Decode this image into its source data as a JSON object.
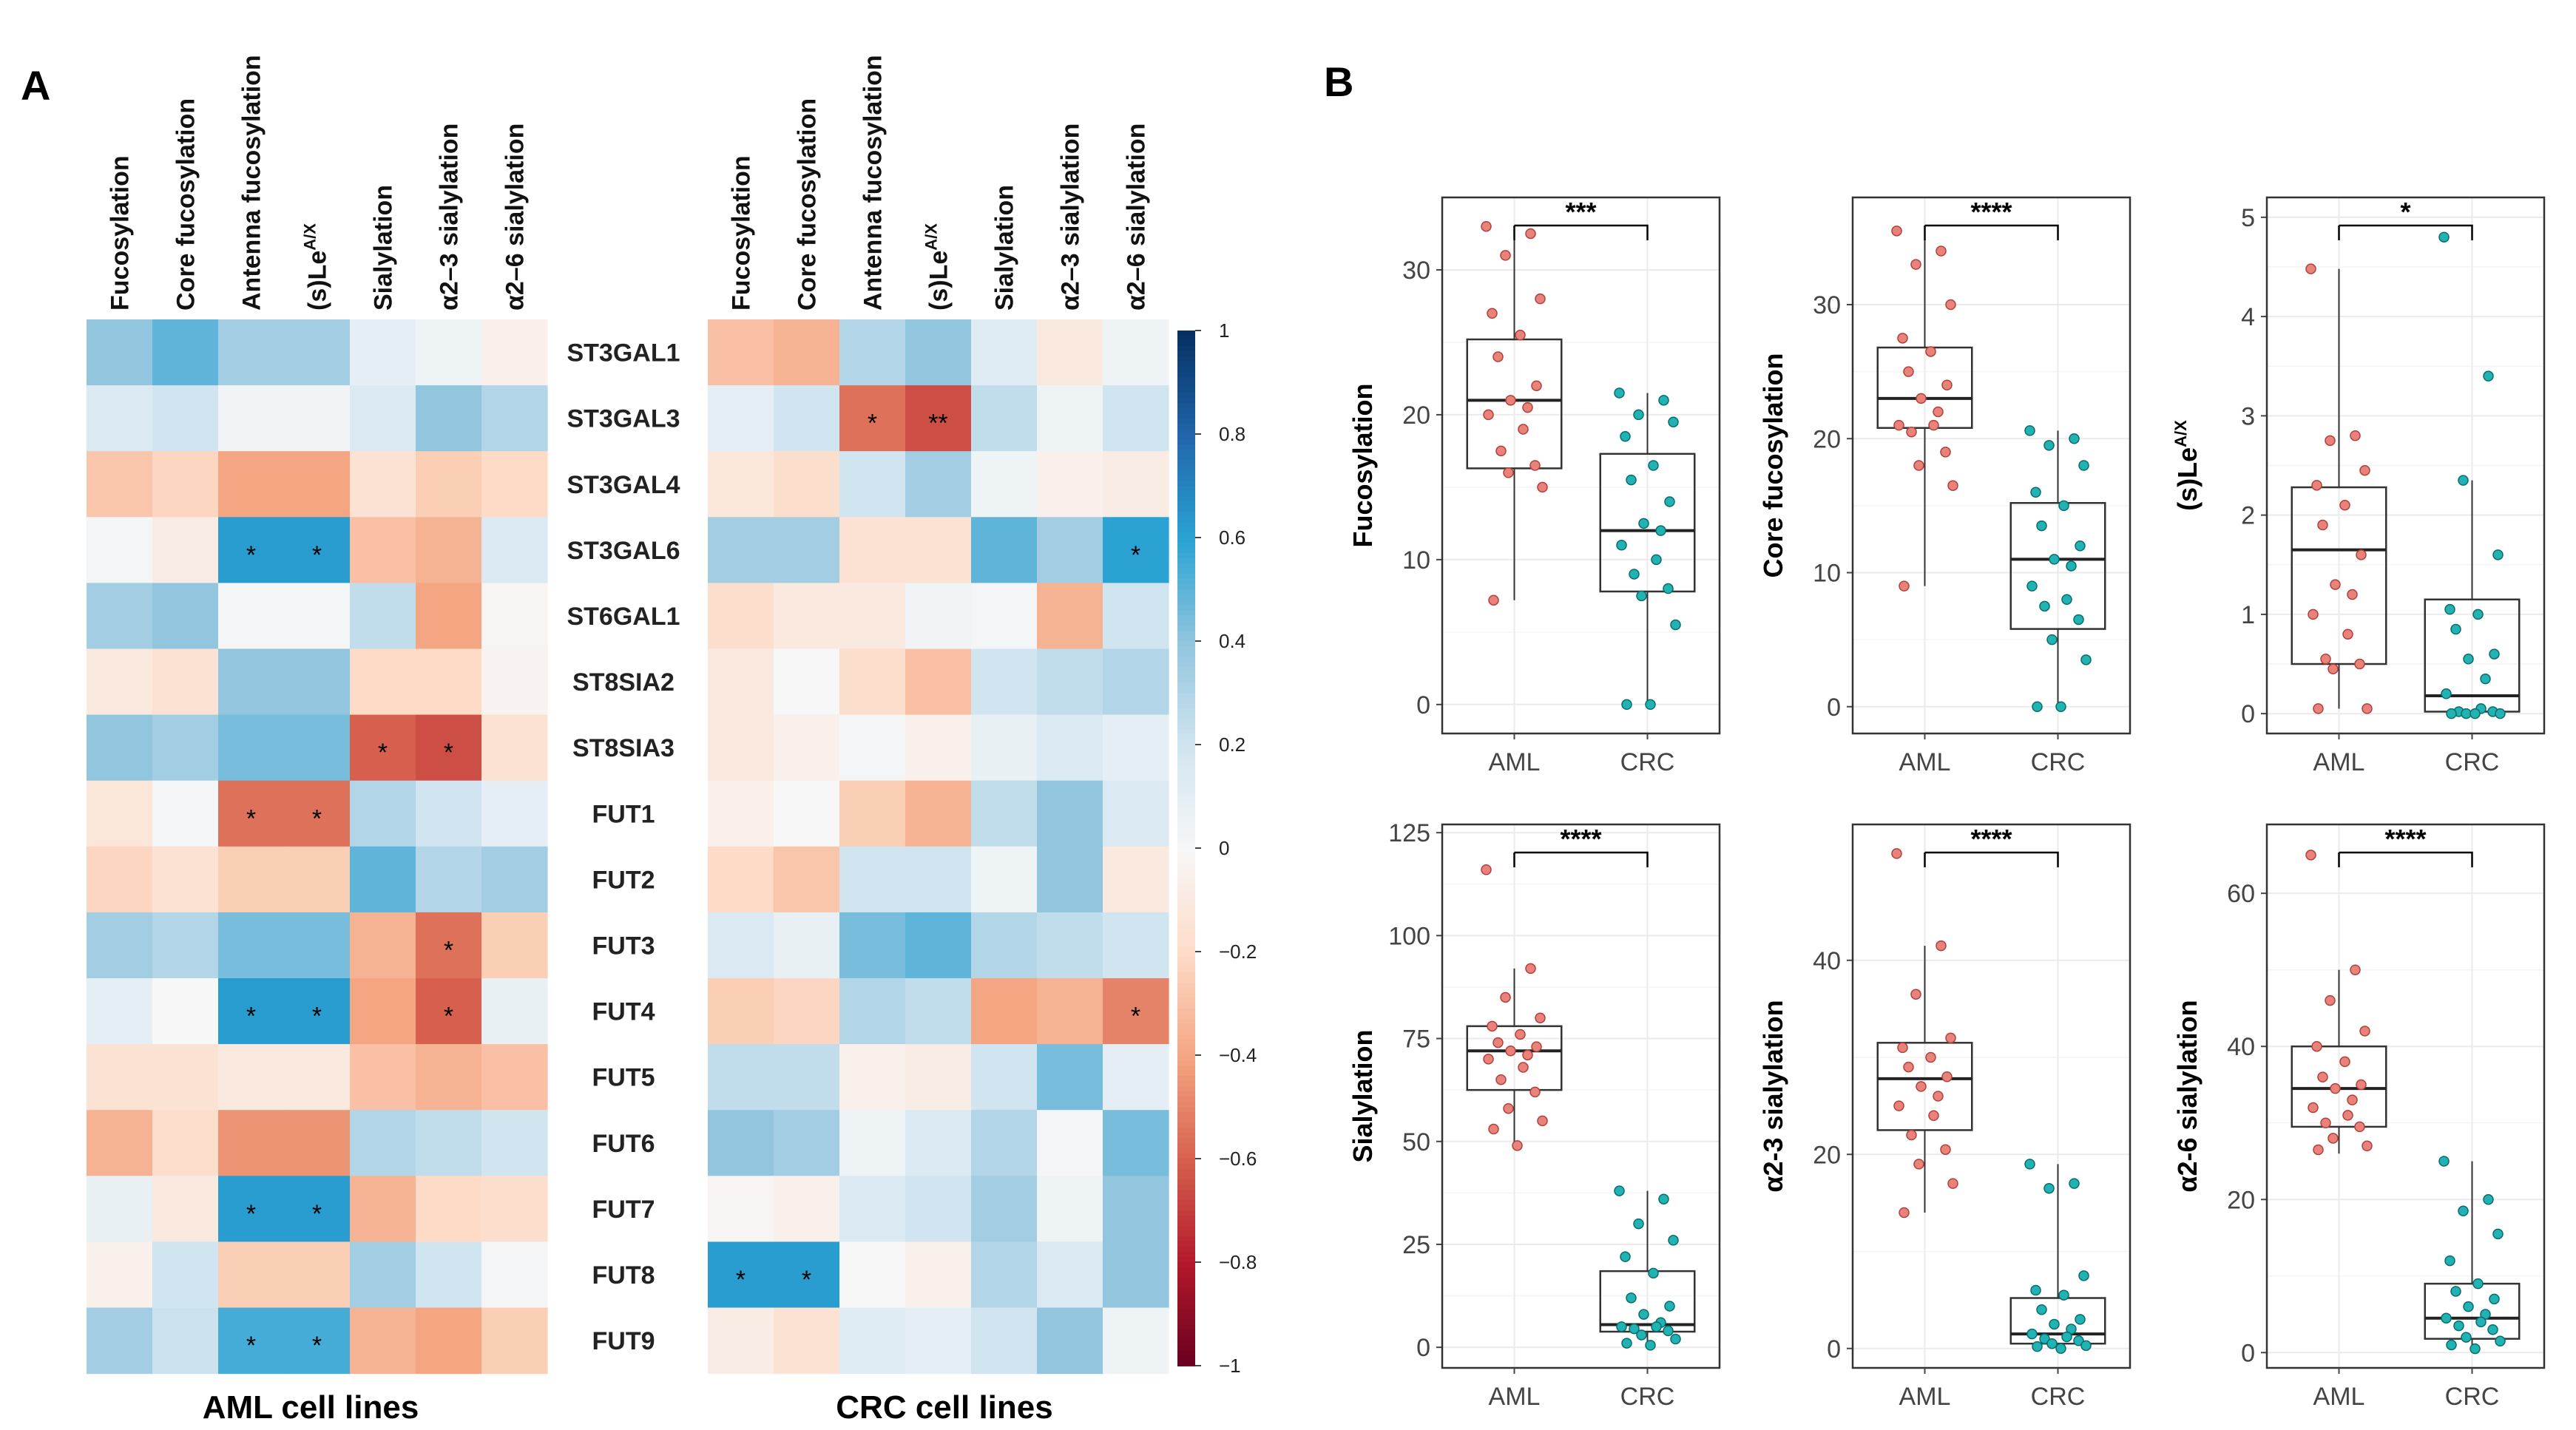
{
  "panel_labels": [
    "A",
    "B"
  ],
  "heatmap": {
    "columns": [
      "Fucosylation",
      "Core fucosylation",
      "Antenna fucosylation",
      "(s)Le^A/X",
      "Sialylation",
      "α2–3 sialylation",
      "α2–6 sialylation"
    ],
    "rows": [
      "ST3GAL1",
      "ST3GAL3",
      "ST3GAL4",
      "ST3GAL6",
      "ST6GAL1",
      "ST8SIA2",
      "ST8SIA3",
      "FUT1",
      "FUT2",
      "FUT3",
      "FUT4",
      "FUT5",
      "FUT6",
      "FUT7",
      "FUT8",
      "FUT9"
    ],
    "colorbar": {
      "ticks": [
        "1",
        "0.8",
        "0.6",
        "0.4",
        "0.2",
        "0",
        "−0.2",
        "−0.4",
        "−0.6",
        "−0.8",
        "−1"
      ],
      "high": "#08306b",
      "mid": "#ffffff",
      "low": "#67001f"
    },
    "panels": [
      {
        "title": "AML cell lines",
        "values": [
          [
            0.4,
            0.5,
            0.35,
            0.35,
            0.1,
            0.05,
            -0.05
          ],
          [
            0.15,
            0.2,
            0.03,
            0.03,
            0.15,
            0.4,
            0.3
          ],
          [
            -0.28,
            -0.22,
            -0.4,
            -0.4,
            -0.15,
            -0.25,
            -0.2
          ],
          [
            0.02,
            -0.08,
            0.62,
            0.62,
            -0.3,
            -0.35,
            0.15
          ],
          [
            0.35,
            0.4,
            0.02,
            0.02,
            0.25,
            -0.4,
            -0.02
          ],
          [
            -0.1,
            -0.15,
            0.4,
            0.4,
            -0.2,
            -0.2,
            -0.03
          ],
          [
            0.4,
            0.35,
            0.45,
            0.45,
            -0.6,
            -0.65,
            -0.15
          ],
          [
            -0.12,
            0.02,
            -0.55,
            -0.55,
            0.3,
            0.2,
            0.1
          ],
          [
            -0.22,
            -0.15,
            -0.25,
            -0.25,
            0.5,
            0.3,
            0.35
          ],
          [
            0.35,
            0.3,
            0.45,
            0.45,
            -0.35,
            -0.55,
            -0.25
          ],
          [
            0.1,
            0.0,
            0.62,
            0.62,
            -0.4,
            -0.6,
            0.08
          ],
          [
            -0.15,
            -0.15,
            -0.1,
            -0.1,
            -0.3,
            -0.35,
            -0.3
          ],
          [
            -0.35,
            -0.18,
            -0.45,
            -0.45,
            0.3,
            0.25,
            0.2
          ],
          [
            0.08,
            -0.1,
            0.62,
            0.62,
            -0.35,
            -0.2,
            -0.18
          ],
          [
            -0.05,
            0.2,
            -0.25,
            -0.25,
            0.35,
            0.2,
            0.02
          ],
          [
            0.35,
            0.22,
            0.55,
            0.55,
            -0.35,
            -0.4,
            -0.25
          ]
        ],
        "stars": [
          {
            "row": 3,
            "col": 2,
            "text": "*"
          },
          {
            "row": 3,
            "col": 3,
            "text": "*"
          },
          {
            "row": 6,
            "col": 4,
            "text": "*"
          },
          {
            "row": 6,
            "col": 5,
            "text": "*"
          },
          {
            "row": 7,
            "col": 2,
            "text": "*"
          },
          {
            "row": 7,
            "col": 3,
            "text": "*"
          },
          {
            "row": 9,
            "col": 5,
            "text": "*"
          },
          {
            "row": 10,
            "col": 2,
            "text": "*"
          },
          {
            "row": 10,
            "col": 3,
            "text": "*"
          },
          {
            "row": 10,
            "col": 5,
            "text": "*"
          },
          {
            "row": 13,
            "col": 2,
            "text": "*"
          },
          {
            "row": 13,
            "col": 3,
            "text": "*"
          },
          {
            "row": 15,
            "col": 2,
            "text": "*"
          },
          {
            "row": 15,
            "col": 3,
            "text": "*"
          }
        ]
      },
      {
        "title": "CRC cell lines",
        "values": [
          [
            -0.3,
            -0.35,
            0.3,
            0.4,
            0.12,
            -0.1,
            0.05
          ],
          [
            0.1,
            0.2,
            -0.55,
            -0.65,
            0.25,
            0.05,
            0.2
          ],
          [
            -0.12,
            -0.18,
            0.2,
            0.35,
            0.05,
            -0.05,
            -0.08
          ],
          [
            0.35,
            0.35,
            -0.15,
            -0.15,
            0.5,
            0.35,
            0.6
          ],
          [
            -0.18,
            -0.1,
            -0.1,
            0.03,
            0.02,
            -0.35,
            0.2
          ],
          [
            -0.1,
            0.0,
            -0.18,
            -0.3,
            0.2,
            0.25,
            0.3
          ],
          [
            -0.1,
            -0.05,
            0.02,
            -0.05,
            0.08,
            0.15,
            0.1
          ],
          [
            -0.05,
            0.0,
            -0.25,
            -0.35,
            0.25,
            0.4,
            0.15
          ],
          [
            -0.2,
            -0.28,
            0.2,
            0.2,
            0.05,
            0.4,
            -0.1
          ],
          [
            0.15,
            0.08,
            0.45,
            0.5,
            0.3,
            0.25,
            0.2
          ],
          [
            -0.25,
            -0.22,
            0.3,
            0.25,
            -0.4,
            -0.35,
            -0.5
          ],
          [
            0.25,
            0.25,
            -0.05,
            -0.08,
            0.2,
            0.45,
            0.1
          ],
          [
            0.4,
            0.35,
            0.05,
            0.15,
            0.3,
            0.02,
            0.45
          ],
          [
            -0.02,
            -0.05,
            0.15,
            0.2,
            0.35,
            0.05,
            0.4
          ],
          [
            0.62,
            0.62,
            0.0,
            -0.05,
            0.3,
            0.15,
            0.4
          ],
          [
            -0.08,
            -0.15,
            0.12,
            0.1,
            0.2,
            0.4,
            0.05
          ]
        ],
        "stars": [
          {
            "row": 1,
            "col": 2,
            "text": "*"
          },
          {
            "row": 1,
            "col": 3,
            "text": "**"
          },
          {
            "row": 3,
            "col": 6,
            "text": "*"
          },
          {
            "row": 10,
            "col": 6,
            "text": "*"
          },
          {
            "row": 14,
            "col": 0,
            "text": "*"
          },
          {
            "row": 14,
            "col": 1,
            "text": "*"
          }
        ]
      }
    ]
  },
  "chart_data": [
    {
      "type": "box",
      "title": "",
      "ylabel": "Fucosylation",
      "categories": [
        "AML",
        "CRC"
      ],
      "ylim": [
        -2,
        35
      ],
      "yticks": [
        0,
        10,
        20,
        30
      ],
      "significance": "***",
      "boxes": [
        {
          "q1": 16.3,
          "median": 21.0,
          "q3": 25.2,
          "min": 7.2,
          "max": 33
        },
        {
          "q1": 7.8,
          "median": 12.0,
          "q3": 17.3,
          "min": 0,
          "max": 21.5
        }
      ],
      "points": [
        [
          33,
          32.5,
          31,
          28,
          27,
          25.5,
          24,
          22,
          21,
          20.5,
          20,
          19,
          17.5,
          16.5,
          16,
          15,
          7.2
        ],
        [
          21.5,
          21,
          20,
          19.5,
          18.5,
          16.5,
          15.5,
          14,
          12.5,
          12,
          11,
          10,
          9,
          8,
          7.5,
          5.5,
          0,
          0
        ]
      ]
    },
    {
      "type": "box",
      "title": "",
      "ylabel": "Core fucosylation",
      "categories": [
        "AML",
        "CRC"
      ],
      "ylim": [
        -2,
        38
      ],
      "yticks": [
        0,
        10,
        20,
        30
      ],
      "significance": "****",
      "boxes": [
        {
          "q1": 20.8,
          "median": 23.0,
          "q3": 26.8,
          "min": 9,
          "max": 35.5
        },
        {
          "q1": 5.8,
          "median": 11.0,
          "q3": 15.2,
          "min": 0,
          "max": 20.6
        }
      ],
      "points": [
        [
          35.5,
          34,
          33,
          30,
          27.5,
          26.5,
          25,
          24,
          23,
          22,
          21,
          21,
          20.5,
          19,
          18,
          16.5,
          9
        ],
        [
          20.6,
          20,
          19.5,
          18,
          16,
          15,
          13.5,
          12,
          11,
          10.5,
          9,
          8,
          7.5,
          6.5,
          5,
          3.5,
          0,
          0
        ]
      ]
    },
    {
      "type": "box",
      "title": "",
      "ylabel": "(s)Le^A/X",
      "categories": [
        "AML",
        "CRC"
      ],
      "ylim": [
        -0.2,
        5.2
      ],
      "yticks": [
        0,
        1,
        2,
        3,
        4,
        5
      ],
      "significance": "*",
      "boxes": [
        {
          "q1": 0.5,
          "median": 1.65,
          "q3": 2.28,
          "min": 0.05,
          "max": 4.48
        },
        {
          "q1": 0.02,
          "median": 0.18,
          "q3": 1.15,
          "min": 0,
          "max": 2.35
        }
      ],
      "points": [
        [
          4.48,
          2.8,
          2.75,
          2.45,
          2.3,
          2.1,
          1.9,
          1.6,
          1.3,
          1.2,
          1.0,
          0.8,
          0.55,
          0.5,
          0.45,
          0.05,
          0.05
        ],
        [
          4.8,
          3.4,
          2.35,
          1.6,
          1.05,
          1.0,
          0.85,
          0.6,
          0.55,
          0.35,
          0.2,
          0.05,
          0.02,
          0.02,
          0,
          0,
          0,
          0
        ]
      ]
    },
    {
      "type": "box",
      "title": "",
      "ylabel": "Sialylation",
      "categories": [
        "AML",
        "CRC"
      ],
      "ylim": [
        -5,
        127
      ],
      "yticks": [
        0,
        25,
        50,
        75,
        100,
        125
      ],
      "significance": "****",
      "boxes": [
        {
          "q1": 62.5,
          "median": 72.0,
          "q3": 78.0,
          "min": 49,
          "max": 92
        },
        {
          "q1": 3.8,
          "median": 5.5,
          "q3": 18.5,
          "min": 0,
          "max": 38
        }
      ],
      "points": [
        [
          116,
          92,
          85,
          80,
          78,
          76,
          74,
          73,
          72,
          71,
          70,
          68,
          65,
          62,
          58,
          55,
          53,
          49
        ],
        [
          38,
          36,
          30,
          26,
          22,
          18,
          12,
          10,
          8,
          6,
          5,
          5,
          4.5,
          4,
          3,
          2,
          1,
          0.5
        ]
      ]
    },
    {
      "type": "box",
      "title": "",
      "ylabel": "α2-3 sialylation",
      "categories": [
        "AML",
        "CRC"
      ],
      "ylim": [
        -2,
        54
      ],
      "yticks": [
        0,
        20,
        40
      ],
      "significance": "****",
      "boxes": [
        {
          "q1": 22.5,
          "median": 27.8,
          "q3": 31.5,
          "min": 14,
          "max": 41.5
        },
        {
          "q1": 0.5,
          "median": 1.5,
          "q3": 5.2,
          "min": 0,
          "max": 19
        }
      ],
      "points": [
        [
          51,
          41.5,
          36.5,
          32,
          31,
          30,
          29,
          28,
          27,
          26,
          25,
          24,
          22,
          20.5,
          19,
          17,
          14
        ],
        [
          19,
          17,
          16.5,
          7.5,
          6,
          5.5,
          4,
          3,
          2.5,
          2,
          1.5,
          1.2,
          1,
          0.8,
          0.5,
          0.3,
          0.2,
          0
        ]
      ]
    },
    {
      "type": "box",
      "title": "",
      "ylabel": "α2-6 sialylation",
      "categories": [
        "AML",
        "CRC"
      ],
      "ylim": [
        -2,
        69
      ],
      "yticks": [
        0,
        20,
        40,
        60
      ],
      "significance": "****",
      "boxes": [
        {
          "q1": 29.5,
          "median": 34.5,
          "q3": 40.0,
          "min": 26,
          "max": 50
        },
        {
          "q1": 1.8,
          "median": 4.5,
          "q3": 9.0,
          "min": 0,
          "max": 25
        }
      ],
      "points": [
        [
          65,
          50,
          46,
          42,
          40,
          38,
          36,
          35,
          34.5,
          33,
          32,
          31,
          30,
          29.5,
          28,
          27,
          26.5
        ],
        [
          25,
          20,
          18.5,
          15.5,
          12,
          9,
          8,
          7,
          6,
          5,
          4.5,
          4,
          3.5,
          3,
          2,
          1.5,
          1,
          0.5
        ]
      ]
    }
  ],
  "colors": {
    "aml": "#e8827a",
    "aml_stroke": "#b0403a",
    "crc": "#21b3b3",
    "crc_stroke": "#0b6b6b",
    "grid": "#ebebeb",
    "frame": "#333333"
  }
}
